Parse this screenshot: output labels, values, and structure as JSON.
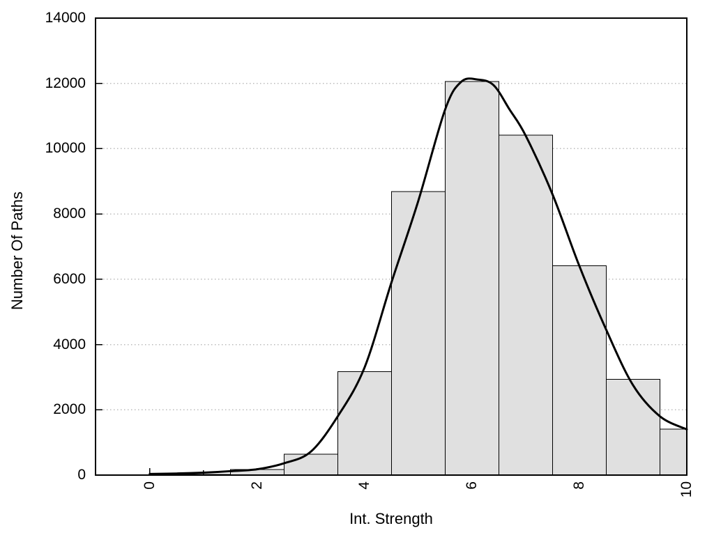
{
  "chart_data": {
    "type": "bar",
    "subtype": "histogram-with-density-curve",
    "title": "",
    "xlabel": "Int. Strength",
    "ylabel": "Number Of Paths",
    "xlim": [
      -1.01,
      10
    ],
    "ylim": [
      0,
      14000
    ],
    "grid": "horizontal-dotted",
    "legend": "none",
    "x_major_ticks": [
      0,
      2,
      4,
      6,
      8,
      10
    ],
    "x_minor_ticks": [
      1,
      3,
      5,
      7,
      9
    ],
    "y_ticks": [
      0,
      2000,
      4000,
      6000,
      8000,
      10000,
      12000,
      14000
    ],
    "grid_levels": [
      2000,
      4000,
      6000,
      8000,
      10000,
      12000
    ],
    "bin_width": 1,
    "bin_centers": [
      0,
      1,
      2,
      3,
      4,
      5,
      6,
      7,
      8,
      9,
      10
    ],
    "counts": [
      5,
      25,
      170,
      640,
      3170,
      8690,
      12060,
      10410,
      6410,
      2930,
      1410
    ],
    "series": [
      {
        "name": "paths-histogram",
        "values": [
          5,
          25,
          170,
          640,
          3170,
          8690,
          12060,
          10410,
          6410,
          2930,
          1410
        ]
      },
      {
        "name": "density-curve",
        "points": [
          [
            0,
            35
          ],
          [
            0.5,
            50
          ],
          [
            1,
            75
          ],
          [
            1.5,
            120
          ],
          [
            2,
            180
          ],
          [
            2.5,
            360
          ],
          [
            3,
            720
          ],
          [
            3.5,
            1800
          ],
          [
            4,
            3300
          ],
          [
            4.5,
            5900
          ],
          [
            5,
            8400
          ],
          [
            5.5,
            11200
          ],
          [
            5.8,
            12050
          ],
          [
            6.1,
            12120
          ],
          [
            6.4,
            11950
          ],
          [
            6.7,
            11200
          ],
          [
            7,
            10400
          ],
          [
            7.5,
            8600
          ],
          [
            8,
            6400
          ],
          [
            8.5,
            4450
          ],
          [
            9,
            2750
          ],
          [
            9.5,
            1800
          ],
          [
            10,
            1400
          ]
        ]
      }
    ],
    "colors": {
      "background": "#ffffff",
      "bar_fill": "#e0e0e0",
      "bar_border": "#000000",
      "curve": "#000000",
      "grid": "#bbbbbb",
      "axis": "#000000",
      "text": "#000000"
    }
  }
}
